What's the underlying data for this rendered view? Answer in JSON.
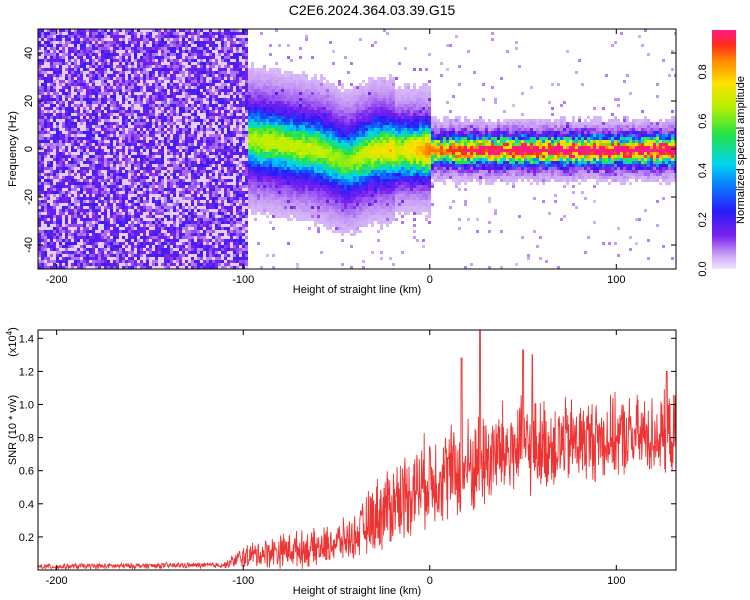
{
  "title": "C2E6.2024.364.03.39.G15",
  "chart_data": [
    {
      "type": "heatmap",
      "xlabel": "Height of straight line (km)",
      "ylabel": "Frequency (Hz)",
      "xlim": [
        -210,
        132
      ],
      "ylim": [
        -50,
        50
      ],
      "xticks": [
        -200,
        -100,
        0,
        100
      ],
      "yticks": [
        -40,
        -20,
        0,
        20,
        40
      ],
      "colorbar": {
        "label": "Normalized spectral amplitude",
        "range": [
          0,
          0.97
        ],
        "ticks": [
          0.0,
          0.2,
          0.4,
          0.6,
          0.8
        ],
        "tick_labels": [
          "0.0",
          "0.2",
          "0.4",
          "0.6",
          "0.8"
        ]
      },
      "ridge": [
        {
          "x": -105,
          "f": 5,
          "amp": 0.45
        },
        {
          "x": -90,
          "f": 4,
          "amp": 0.5
        },
        {
          "x": -75,
          "f": 2,
          "amp": 0.5
        },
        {
          "x": -60,
          "f": 0,
          "amp": 0.5
        },
        {
          "x": -45,
          "f": -5,
          "amp": 0.45
        },
        {
          "x": -30,
          "f": 0,
          "amp": 0.55
        },
        {
          "x": -15,
          "f": 0,
          "amp": 0.6
        },
        {
          "x": 0,
          "f": 0,
          "amp": 0.75
        },
        {
          "x": 25,
          "f": 0,
          "amp": 0.85
        },
        {
          "x": 50,
          "f": 0,
          "amp": 0.88
        },
        {
          "x": 75,
          "f": 0,
          "amp": 0.9
        },
        {
          "x": 100,
          "f": 0,
          "amp": 0.9
        },
        {
          "x": 132,
          "f": 0,
          "amp": 0.9
        }
      ],
      "noise_region_xlim": [
        -210,
        -98
      ]
    },
    {
      "type": "line",
      "xlabel": "Height of straight line (km)",
      "ylabel": "SNR (10 * v/v)",
      "y_multiplier": "(x10^4)",
      "y_multiplier_parts": {
        "base": "(x10",
        "exp": "4",
        "close": ")"
      },
      "xlim": [
        -210,
        132
      ],
      "ylim": [
        0,
        1.45
      ],
      "xticks": [
        -200,
        -100,
        0,
        100
      ],
      "yticks": [
        0.2,
        0.4,
        0.6,
        0.8,
        1.0,
        1.2,
        1.4
      ],
      "ytick_labels": [
        "0.2",
        "0.4",
        "0.6",
        "0.8",
        "1.0",
        "1.2",
        "1.4"
      ],
      "series": [
        {
          "color": "#ee3333",
          "envelope": [
            {
              "x": -210,
              "mean": 0.02,
              "spread": 0.02
            },
            {
              "x": -110,
              "mean": 0.03,
              "spread": 0.02
            },
            {
              "x": -100,
              "mean": 0.08,
              "spread": 0.08
            },
            {
              "x": -80,
              "mean": 0.12,
              "spread": 0.12
            },
            {
              "x": -60,
              "mean": 0.13,
              "spread": 0.13
            },
            {
              "x": -40,
              "mean": 0.2,
              "spread": 0.15
            },
            {
              "x": -30,
              "mean": 0.32,
              "spread": 0.25
            },
            {
              "x": -20,
              "mean": 0.4,
              "spread": 0.3
            },
            {
              "x": -10,
              "mean": 0.48,
              "spread": 0.3
            },
            {
              "x": 0,
              "mean": 0.55,
              "spread": 0.32
            },
            {
              "x": 20,
              "mean": 0.62,
              "spread": 0.35
            },
            {
              "x": 40,
              "mean": 0.72,
              "spread": 0.35
            },
            {
              "x": 60,
              "mean": 0.75,
              "spread": 0.32
            },
            {
              "x": 80,
              "mean": 0.78,
              "spread": 0.3
            },
            {
              "x": 100,
              "mean": 0.8,
              "spread": 0.28
            },
            {
              "x": 132,
              "mean": 0.82,
              "spread": 0.28
            }
          ],
          "peaks": [
            {
              "x": 27,
              "y": 1.45
            },
            {
              "x": 50,
              "y": 1.33
            },
            {
              "x": 17,
              "y": 1.28
            },
            {
              "x": 55,
              "y": 1.3
            },
            {
              "x": 127,
              "y": 1.2
            }
          ]
        }
      ]
    }
  ]
}
